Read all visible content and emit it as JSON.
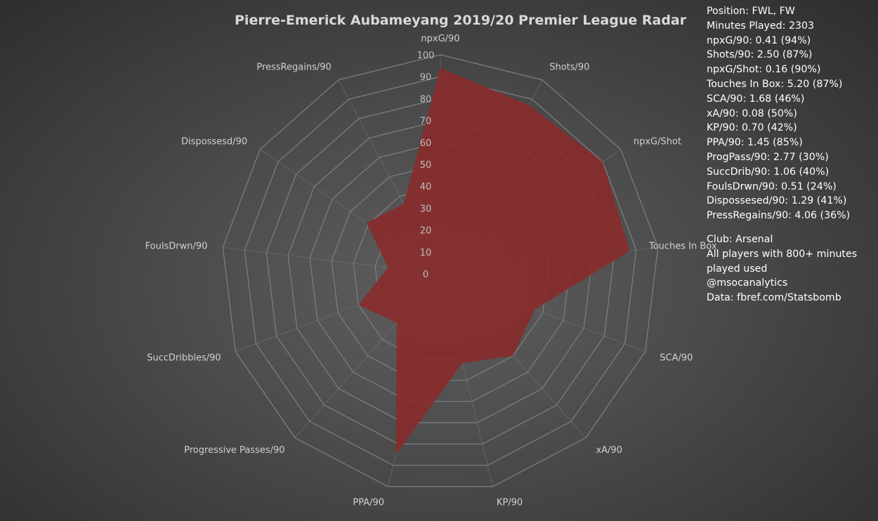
{
  "chart_data": {
    "type": "radar",
    "title": "Pierre-Emerick Aubameyang 2019/20 Premier League Radar",
    "categories": [
      "npxG/90",
      "Shots/90",
      "npxG/Shot",
      "Touches In Box",
      "SCA/90",
      "xA/90",
      "KP/90",
      "PPA/90",
      "Progressive Passes/90",
      "SuccDribbles/90",
      "FoulsDrwn/90",
      "Dispossesd/90",
      "PressRegains/90"
    ],
    "values": [
      94,
      87,
      90,
      87,
      46,
      50,
      42,
      85,
      30,
      40,
      24,
      41,
      36
    ],
    "rlim": [
      0,
      100
    ],
    "rticks": [
      0,
      10,
      20,
      30,
      40,
      50,
      60,
      70,
      80,
      90,
      100
    ],
    "colors": {
      "fill": "#8b2a2a",
      "grid": "#7c7c7c",
      "label": "#d0d0d0",
      "tick": "#bfbfbf"
    }
  },
  "info": {
    "stats": [
      "Position: FWL, FW",
      "Minutes Played: 2303",
      "npxG/90: 0.41 (94%)",
      "Shots/90: 2.50 (87%)",
      "npxG/Shot: 0.16 (90%)",
      "Touches In Box: 5.20 (87%)",
      "SCA/90: 1.68 (46%)",
      "xA/90: 0.08 (50%)",
      "KP/90: 0.70 (42%)",
      "PPA/90: 1.45 (85%)",
      "ProgPass/90: 2.77 (30%)",
      "SuccDrib/90: 1.06 (40%)",
      "FoulsDrwn/90: 0.51 (24%)",
      "Dispossesed/90: 1.29 (41%)",
      "PressRegains/90: 4.06 (36%)"
    ],
    "notes": [
      "Club: Arsenal",
      "All players with 800+ minutes",
      "played used",
      "@msocanalytics",
      "Data: fbref.com/Statsbomb"
    ]
  }
}
